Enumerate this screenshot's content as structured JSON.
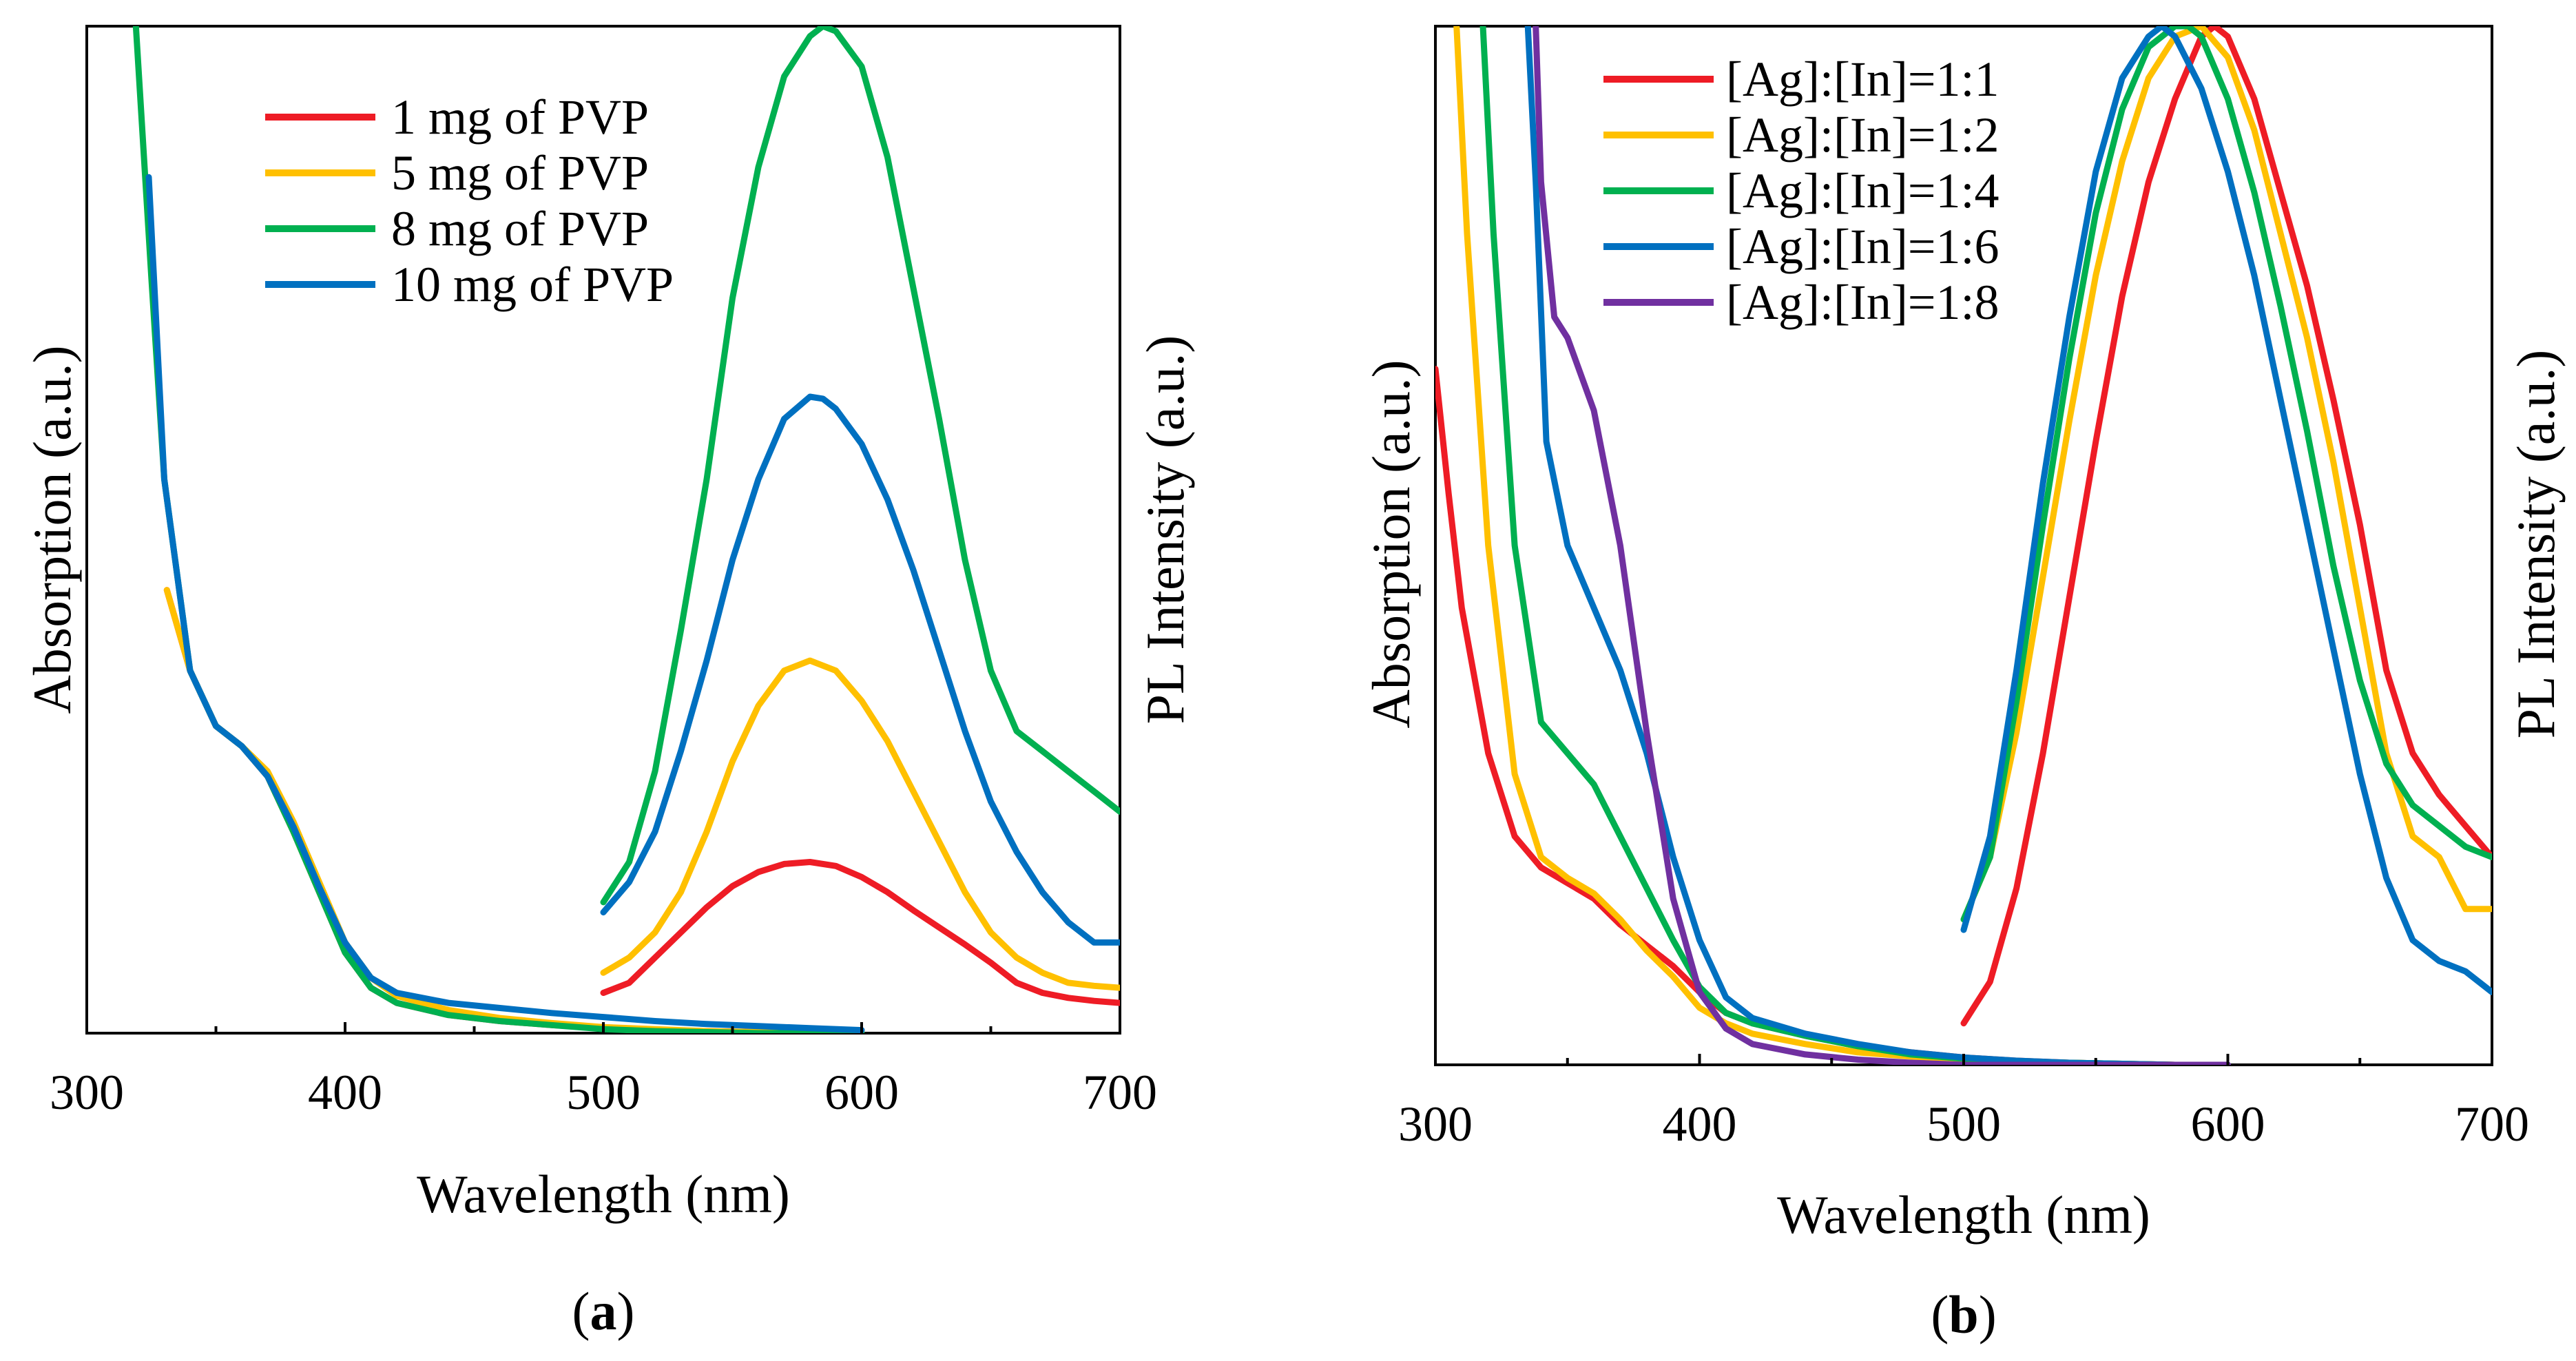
{
  "chart_data": [
    {
      "type": "line",
      "panel_label": "(a)",
      "panel_label_parts": {
        "open": "(",
        "letter": "a",
        "close": ")"
      },
      "xlabel": "Wavelength (nm)",
      "ylabel_left": "Absorption (a.u.)",
      "ylabel_right": "PL Intensity (a.u.)",
      "xlim": [
        300,
        700
      ],
      "xticks": [
        300,
        400,
        500,
        600,
        700
      ],
      "ylim": [
        0,
        1
      ],
      "legend_position": "top-center",
      "series": [
        {
          "name": "1 mg of PVP",
          "color": "#ee1c25",
          "absorption": {
            "x": [
              331,
              340,
              350,
              360,
              370,
              380,
              390,
              400,
              410,
              420,
              440,
              460,
              480,
              500,
              520,
              540,
              560,
              580,
              600
            ],
            "y": [
              0.44,
              0.36,
              0.305,
              0.285,
              0.255,
              0.2,
              0.14,
              0.08,
              0.045,
              0.03,
              0.018,
              0.012,
              0.008,
              0.005,
              0.003,
              0.002,
              0.001,
              0.001,
              0.0
            ]
          },
          "pl": {
            "x": [
              500,
              510,
              520,
              530,
              540,
              550,
              560,
              570,
              580,
              590,
              600,
              610,
              620,
              630,
              640,
              650,
              660,
              670,
              680,
              690,
              700
            ],
            "y": [
              0.04,
              0.05,
              0.075,
              0.1,
              0.125,
              0.146,
              0.16,
              0.168,
              0.17,
              0.166,
              0.155,
              0.14,
              0.122,
              0.105,
              0.088,
              0.07,
              0.05,
              0.04,
              0.035,
              0.032,
              0.03
            ]
          }
        },
        {
          "name": "5 mg of PVP",
          "color": "#ffc000",
          "absorption": {
            "x": [
              331,
              340,
              350,
              360,
              370,
              380,
              390,
              400,
              410,
              420,
              440,
              460,
              480,
              500,
              520,
              540,
              560,
              580,
              600
            ],
            "y": [
              0.44,
              0.36,
              0.305,
              0.285,
              0.26,
              0.21,
              0.15,
              0.09,
              0.055,
              0.037,
              0.023,
              0.015,
              0.01,
              0.006,
              0.004,
              0.002,
              0.001,
              0.001,
              0.0
            ]
          },
          "pl": {
            "x": [
              500,
              510,
              520,
              530,
              540,
              550,
              560,
              570,
              580,
              590,
              600,
              610,
              620,
              630,
              640,
              650,
              660,
              670,
              680,
              690,
              700
            ],
            "y": [
              0.06,
              0.075,
              0.1,
              0.14,
              0.2,
              0.27,
              0.325,
              0.36,
              0.37,
              0.36,
              0.33,
              0.29,
              0.24,
              0.19,
              0.14,
              0.1,
              0.075,
              0.06,
              0.05,
              0.047,
              0.045
            ]
          }
        },
        {
          "name": "8 mg of PVP",
          "color": "#00b050",
          "absorption": {
            "x": [
              319,
              325,
              330,
              340,
              350,
              360,
              370,
              380,
              390,
              400,
              410,
              420,
              440,
              460,
              480,
              500,
              520,
              540,
              560,
              580,
              600
            ],
            "y": [
              1.0,
              0.75,
              0.55,
              0.36,
              0.305,
              0.285,
              0.255,
              0.2,
              0.14,
              0.08,
              0.045,
              0.03,
              0.018,
              0.012,
              0.008,
              0.004,
              0.002,
              0.001,
              0.0,
              0.0,
              0.0
            ]
          },
          "pl": {
            "x": [
              500,
              510,
              520,
              530,
              540,
              550,
              560,
              570,
              580,
              585,
              590,
              600,
              610,
              620,
              630,
              640,
              650,
              660,
              670,
              680,
              690,
              700
            ],
            "y": [
              0.13,
              0.17,
              0.26,
              0.4,
              0.55,
              0.73,
              0.86,
              0.95,
              0.99,
              1.0,
              0.995,
              0.96,
              0.87,
              0.74,
              0.61,
              0.47,
              0.36,
              0.3,
              0.28,
              0.26,
              0.24,
              0.22
            ]
          }
        },
        {
          "name": "10 mg of PVP",
          "color": "#0070c0",
          "absorption": {
            "x": [
              324,
              330,
              340,
              350,
              360,
              370,
              380,
              390,
              400,
              410,
              420,
              440,
              460,
              480,
              500,
              520,
              540,
              560,
              580,
              600
            ],
            "y": [
              0.85,
              0.55,
              0.36,
              0.305,
              0.285,
              0.255,
              0.205,
              0.145,
              0.09,
              0.055,
              0.04,
              0.03,
              0.025,
              0.02,
              0.016,
              0.012,
              0.009,
              0.007,
              0.005,
              0.003
            ]
          },
          "pl": {
            "x": [
              500,
              510,
              520,
              530,
              540,
              550,
              560,
              570,
              580,
              585,
              590,
              600,
              610,
              620,
              630,
              640,
              650,
              660,
              670,
              680,
              690,
              700
            ],
            "y": [
              0.12,
              0.15,
              0.2,
              0.28,
              0.37,
              0.47,
              0.55,
              0.61,
              0.632,
              0.63,
              0.62,
              0.585,
              0.53,
              0.46,
              0.38,
              0.3,
              0.23,
              0.18,
              0.14,
              0.11,
              0.09,
              0.09
            ]
          }
        }
      ]
    },
    {
      "type": "line",
      "panel_label": "(b)",
      "panel_label_parts": {
        "open": "(",
        "letter": "b",
        "close": ")"
      },
      "xlabel": "Wavelength (nm)",
      "ylabel_left": "Absorption (a.u.)",
      "ylabel_right": "PL Intensity (a.u.)",
      "xlim": [
        300,
        700
      ],
      "xticks": [
        300,
        400,
        500,
        600,
        700
      ],
      "ylim": [
        0,
        1
      ],
      "legend_position": "top-left",
      "series": [
        {
          "name": "[Ag]:[In]=1:1",
          "color": "#ee1c25",
          "absorption": {
            "x": [
              300,
              305,
              310,
              320,
              330,
              340,
              350,
              360,
              370,
              380,
              390,
              400,
              410,
              420,
              440,
              460,
              480,
              500,
              520,
              540,
              560,
              580,
              600
            ],
            "y": [
              0.67,
              0.55,
              0.44,
              0.3,
              0.22,
              0.19,
              0.175,
              0.16,
              0.135,
              0.115,
              0.095,
              0.07,
              0.05,
              0.04,
              0.028,
              0.018,
              0.012,
              0.007,
              0.004,
              0.002,
              0.001,
              0.0,
              0.0
            ]
          },
          "pl": {
            "x": [
              500,
              510,
              520,
              530,
              540,
              550,
              560,
              570,
              580,
              590,
              595,
              600,
              610,
              620,
              630,
              640,
              650,
              660,
              670,
              680,
              690,
              700
            ],
            "y": [
              0.04,
              0.08,
              0.17,
              0.3,
              0.45,
              0.6,
              0.74,
              0.85,
              0.93,
              0.99,
              1.0,
              0.99,
              0.93,
              0.84,
              0.75,
              0.64,
              0.52,
              0.38,
              0.3,
              0.26,
              0.23,
              0.2
            ]
          }
        },
        {
          "name": "[Ag]:[In]=1:2",
          "color": "#ffc000",
          "absorption": {
            "x": [
              308,
              312,
              320,
              330,
              340,
              350,
              360,
              370,
              380,
              390,
              400,
              410,
              420,
              440,
              460,
              480,
              500,
              520,
              540,
              560,
              580,
              600
            ],
            "y": [
              1.0,
              0.8,
              0.5,
              0.28,
              0.2,
              0.18,
              0.165,
              0.14,
              0.11,
              0.085,
              0.055,
              0.04,
              0.03,
              0.02,
              0.012,
              0.008,
              0.005,
              0.003,
              0.002,
              0.001,
              0.0,
              0.0
            ]
          },
          "pl": {
            "x": [
              500,
              510,
              520,
              530,
              540,
              550,
              560,
              570,
              580,
              590,
              600,
              610,
              620,
              630,
              640,
              650,
              660,
              670,
              680,
              690,
              700
            ],
            "y": [
              0.14,
              0.2,
              0.32,
              0.47,
              0.62,
              0.76,
              0.87,
              0.95,
              0.99,
              1.0,
              0.97,
              0.9,
              0.8,
              0.7,
              0.58,
              0.44,
              0.3,
              0.22,
              0.2,
              0.15,
              0.15
            ]
          }
        },
        {
          "name": "[Ag]:[In]=1:4",
          "color": "#00b050",
          "absorption": {
            "x": [
              318,
              322,
              330,
              340,
              350,
              360,
              370,
              380,
              390,
              400,
              410,
              420,
              440,
              460,
              480,
              500,
              520,
              540,
              560,
              580,
              600
            ],
            "y": [
              1.0,
              0.8,
              0.5,
              0.33,
              0.3,
              0.27,
              0.22,
              0.17,
              0.12,
              0.075,
              0.05,
              0.04,
              0.028,
              0.018,
              0.01,
              0.006,
              0.003,
              0.002,
              0.001,
              0.0,
              0.0
            ]
          },
          "pl": {
            "x": [
              500,
              510,
              520,
              530,
              540,
              550,
              560,
              570,
              580,
              585,
              590,
              600,
              610,
              620,
              630,
              640,
              650,
              660,
              670,
              680,
              690,
              700
            ],
            "y": [
              0.14,
              0.2,
              0.35,
              0.52,
              0.68,
              0.82,
              0.92,
              0.98,
              1.0,
              1.0,
              0.99,
              0.93,
              0.84,
              0.73,
              0.61,
              0.48,
              0.37,
              0.29,
              0.25,
              0.23,
              0.21,
              0.2
            ]
          }
        },
        {
          "name": "[Ag]:[In]=1:6",
          "color": "#0070c0",
          "absorption": {
            "x": [
              335,
              338,
              342,
              350,
              360,
              370,
              380,
              390,
              400,
              410,
              420,
              440,
              460,
              480,
              500,
              520,
              540,
              560,
              580,
              600
            ],
            "y": [
              1.0,
              0.85,
              0.6,
              0.5,
              0.44,
              0.38,
              0.3,
              0.2,
              0.12,
              0.065,
              0.045,
              0.03,
              0.02,
              0.012,
              0.007,
              0.004,
              0.002,
              0.001,
              0.0,
              0.0
            ]
          },
          "pl": {
            "x": [
              500,
              510,
              520,
              530,
              540,
              550,
              560,
              570,
              575,
              580,
              590,
              600,
              610,
              620,
              630,
              640,
              650,
              660,
              670,
              680,
              690,
              700
            ],
            "y": [
              0.13,
              0.22,
              0.38,
              0.56,
              0.72,
              0.86,
              0.95,
              0.99,
              1.0,
              0.99,
              0.94,
              0.86,
              0.76,
              0.64,
              0.52,
              0.4,
              0.28,
              0.18,
              0.12,
              0.1,
              0.09,
              0.07
            ]
          }
        },
        {
          "name": "[Ag]:[In]=1:8",
          "color": "#7030a0",
          "absorption": {
            "x": [
              338,
              340,
              345,
              350,
              360,
              370,
              380,
              390,
              400,
              410,
              420,
              440,
              460,
              480,
              500,
              520,
              540,
              560,
              580,
              600
            ],
            "y": [
              1.0,
              0.85,
              0.72,
              0.7,
              0.63,
              0.5,
              0.32,
              0.16,
              0.07,
              0.035,
              0.02,
              0.01,
              0.005,
              0.002,
              0.0,
              0.0,
              0.0,
              0.0,
              0.0,
              0.0
            ]
          },
          "pl": null
        }
      ]
    }
  ]
}
